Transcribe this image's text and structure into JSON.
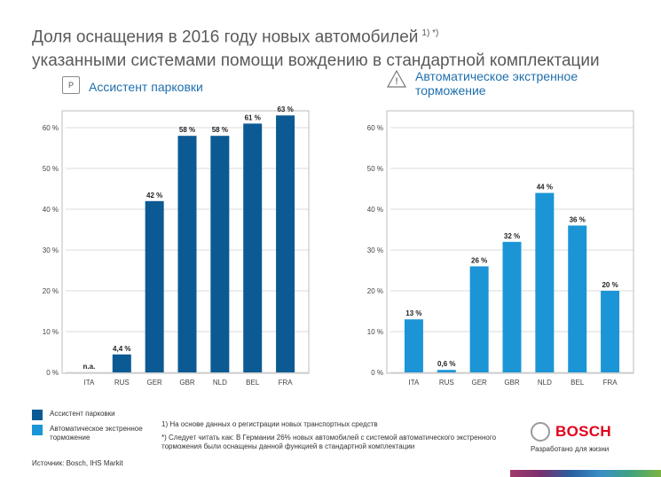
{
  "title": {
    "line1": "Доля оснащения в 2016 году новых автомобилей",
    "footnote_marks": "1) *)",
    "line2": "указанными системами помощи вождению в стандартной комплектации"
  },
  "panels": [
    {
      "icon_text": "P",
      "icon": "parking-icon",
      "title": "Ассистент парковки"
    },
    {
      "icon_text": "!",
      "icon": "warning-triangle-icon",
      "title": "Автоматическое экстренное\nторможение"
    }
  ],
  "colors": {
    "parking": "#0b5a93",
    "braking": "#1b95d6",
    "grid": "#cfcfcf"
  },
  "chart_data": [
    {
      "type": "bar",
      "title": "Ассистент парковки",
      "categories": [
        "ITA",
        "RUS",
        "GER",
        "GBR",
        "NLD",
        "BEL",
        "FRA"
      ],
      "values": [
        null,
        4.4,
        42,
        58,
        58,
        61,
        63
      ],
      "data_labels": [
        "n.a.",
        "4,4 %",
        "42 %",
        "58 %",
        "58 %",
        "61 %",
        "63 %"
      ],
      "y_ticks": [
        "0 %",
        "10 %",
        "20 %",
        "30 %",
        "40 %",
        "50 %",
        "60 %"
      ],
      "ylim": [
        0,
        65
      ],
      "grid": true
    },
    {
      "type": "bar",
      "title": "Автоматическое экстренное торможение",
      "categories": [
        "ITA",
        "RUS",
        "GER",
        "GBR",
        "NLD",
        "BEL",
        "FRA"
      ],
      "values": [
        13,
        0.6,
        26,
        32,
        44,
        36,
        20
      ],
      "data_labels": [
        "13 %",
        "0,6 %",
        "26 %",
        "32 %",
        "44 %",
        "36 %",
        "20 %"
      ],
      "y_ticks": [
        "0 %",
        "10 %",
        "20 %",
        "30 %",
        "40 %",
        "50 %",
        "60 %"
      ],
      "ylim": [
        0,
        65
      ],
      "grid": true
    }
  ],
  "legend": [
    {
      "label": "Ассистент парковки",
      "color": "#0b5a93"
    },
    {
      "label": "Автоматическое экстренное торможение",
      "color": "#1b95d6"
    }
  ],
  "footnotes": [
    "1) На основе данных о регистрации новых транспортных средств",
    "*) Следует читать как: В Германии 26% новых автомобилей с системой автоматического экстренного торможения были оснащены данной функцией в стандартной комплектации"
  ],
  "source": "Источник: Bosch, IHS Markit",
  "brand": {
    "name": "BOSCH",
    "slogan": "Разработано для жизни"
  }
}
